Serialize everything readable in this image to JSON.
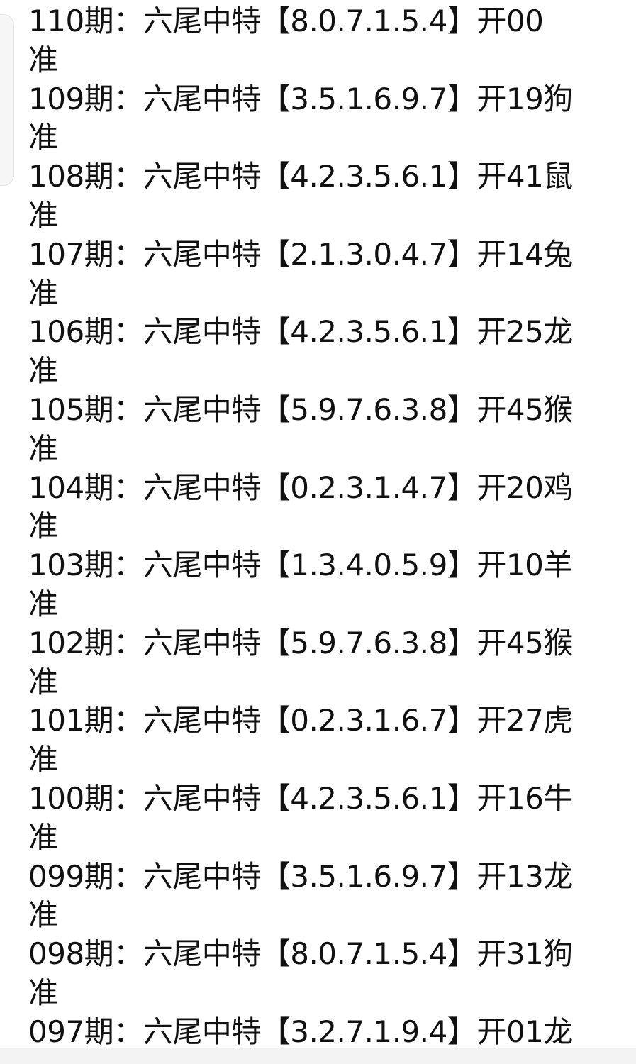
{
  "label_prefix": "期：",
  "label_mid": "六尾中特",
  "label_open": "开",
  "result_mark": "准",
  "entries": [
    {
      "issue": "110",
      "tails": "8.0.7.1.5.4",
      "number": "00",
      "zodiac": "",
      "accurate": true
    },
    {
      "issue": "109",
      "tails": "3.5.1.6.9.7",
      "number": "19",
      "zodiac": "狗",
      "accurate": true
    },
    {
      "issue": "108",
      "tails": "4.2.3.5.6.1",
      "number": "41",
      "zodiac": "鼠",
      "accurate": true
    },
    {
      "issue": "107",
      "tails": "2.1.3.0.4.7",
      "number": "14",
      "zodiac": "兔",
      "accurate": true
    },
    {
      "issue": "106",
      "tails": "4.2.3.5.6.1",
      "number": "25",
      "zodiac": "龙",
      "accurate": true
    },
    {
      "issue": "105",
      "tails": "5.9.7.6.3.8",
      "number": "45",
      "zodiac": "猴",
      "accurate": true
    },
    {
      "issue": "104",
      "tails": "0.2.3.1.4.7",
      "number": "20",
      "zodiac": "鸡",
      "accurate": true
    },
    {
      "issue": "103",
      "tails": "1.3.4.0.5.9",
      "number": "10",
      "zodiac": "羊",
      "accurate": true
    },
    {
      "issue": "102",
      "tails": "5.9.7.6.3.8",
      "number": "45",
      "zodiac": "猴",
      "accurate": true
    },
    {
      "issue": "101",
      "tails": "0.2.3.1.6.7",
      "number": "27",
      "zodiac": "虎",
      "accurate": true
    },
    {
      "issue": "100",
      "tails": "4.2.3.5.6.1",
      "number": "16",
      "zodiac": "牛",
      "accurate": true
    },
    {
      "issue": "099",
      "tails": "3.5.1.6.9.7",
      "number": "13",
      "zodiac": "龙",
      "accurate": true
    },
    {
      "issue": "098",
      "tails": "8.0.7.1.5.4",
      "number": "31",
      "zodiac": "狗",
      "accurate": true
    },
    {
      "issue": "097",
      "tails": "3.2.7.1.9.4",
      "number": "01",
      "zodiac": "龙",
      "accurate": false
    }
  ]
}
